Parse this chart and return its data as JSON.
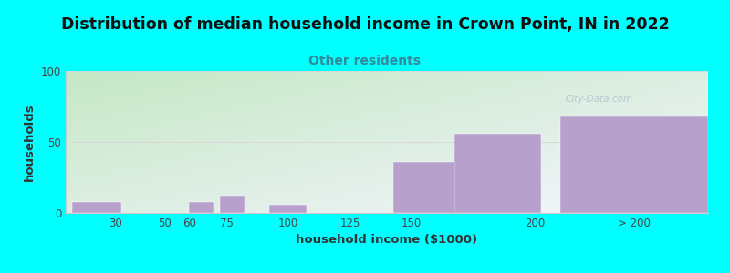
{
  "title": "Distribution of median household income in Crown Point, IN in 2022",
  "subtitle": "Other residents",
  "xlabel": "household income ($1000)",
  "ylabel": "households",
  "background_color": "#00ffff",
  "bar_color": "#b8a0cc",
  "title_fontsize": 12.5,
  "title_color": "#111111",
  "subtitle_fontsize": 10,
  "subtitle_color": "#338899",
  "axis_label_fontsize": 9.5,
  "axis_label_color": "#333333",
  "tick_fontsize": 8.5,
  "ylim": [
    0,
    100
  ],
  "yticks": [
    0,
    50,
    100
  ],
  "bar_positions": [
    22.5,
    55,
    65,
    77.5,
    100,
    137.5,
    155,
    185,
    240
  ],
  "bar_widths": [
    20,
    5,
    10,
    10,
    15,
    15,
    25,
    35,
    60
  ],
  "bar_heights": [
    8,
    0,
    8,
    12,
    6,
    0,
    36,
    56,
    68
  ],
  "xtick_labels": [
    "30",
    "50",
    "60",
    "75",
    "100",
    "125",
    "150",
    "200",
    "> 200"
  ],
  "xtick_positions": [
    30,
    50,
    60,
    75,
    100,
    125,
    150,
    200,
    240
  ],
  "xlim": [
    10,
    270
  ],
  "watermark": "City-Data.com",
  "watermark_color": "#aabccc",
  "gradient_colors": [
    "#c5e8c5",
    "#f5f5ff"
  ],
  "gridline_color": "#d8d8d8",
  "spine_color": "#cccccc"
}
